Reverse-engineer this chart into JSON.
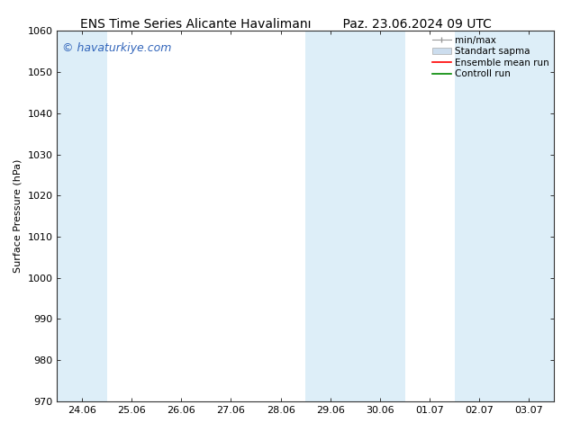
{
  "title_left": "ENS Time Series Alicante Havalimanı",
  "title_right": "Paz. 23.06.2024 09 UTC",
  "ylabel": "Surface Pressure (hPa)",
  "ylim": [
    970,
    1060
  ],
  "yticks": [
    970,
    980,
    990,
    1000,
    1010,
    1020,
    1030,
    1040,
    1050,
    1060
  ],
  "xtick_labels": [
    "24.06",
    "25.06",
    "26.06",
    "27.06",
    "28.06",
    "29.06",
    "30.06",
    "01.07",
    "02.07",
    "03.07"
  ],
  "xtick_positions": [
    0,
    1,
    2,
    3,
    4,
    5,
    6,
    7,
    8,
    9
  ],
  "shaded_bands": [
    {
      "xmin": -0.5,
      "xmax": 0.5,
      "color": "#ddeef8"
    },
    {
      "xmin": 4.5,
      "xmax": 5.5,
      "color": "#ddeef8"
    },
    {
      "xmin": 5.5,
      "xmax": 6.5,
      "color": "#ddeef8"
    },
    {
      "xmin": 7.5,
      "xmax": 8.5,
      "color": "#ddeef8"
    },
    {
      "xmin": 8.5,
      "xmax": 9.5,
      "color": "#ddeef8"
    }
  ],
  "watermark": "© havaturkiye.com",
  "watermark_color": "#3366bb",
  "bg_color": "#ffffff",
  "plot_bg_color": "#ffffff",
  "legend_items": [
    {
      "label": "min/max",
      "color": "#aaaaaa",
      "style": "minmax"
    },
    {
      "label": "Standart sapma",
      "color": "#ccddee",
      "style": "patch"
    },
    {
      "label": "Ensemble mean run",
      "color": "#ff0000",
      "style": "line",
      "lw": 1.2
    },
    {
      "label": "Controll run",
      "color": "#008800",
      "style": "line",
      "lw": 1.2
    }
  ],
  "title_fontsize": 10,
  "tick_fontsize": 8,
  "ylabel_fontsize": 8,
  "watermark_fontsize": 9,
  "legend_fontsize": 7.5
}
